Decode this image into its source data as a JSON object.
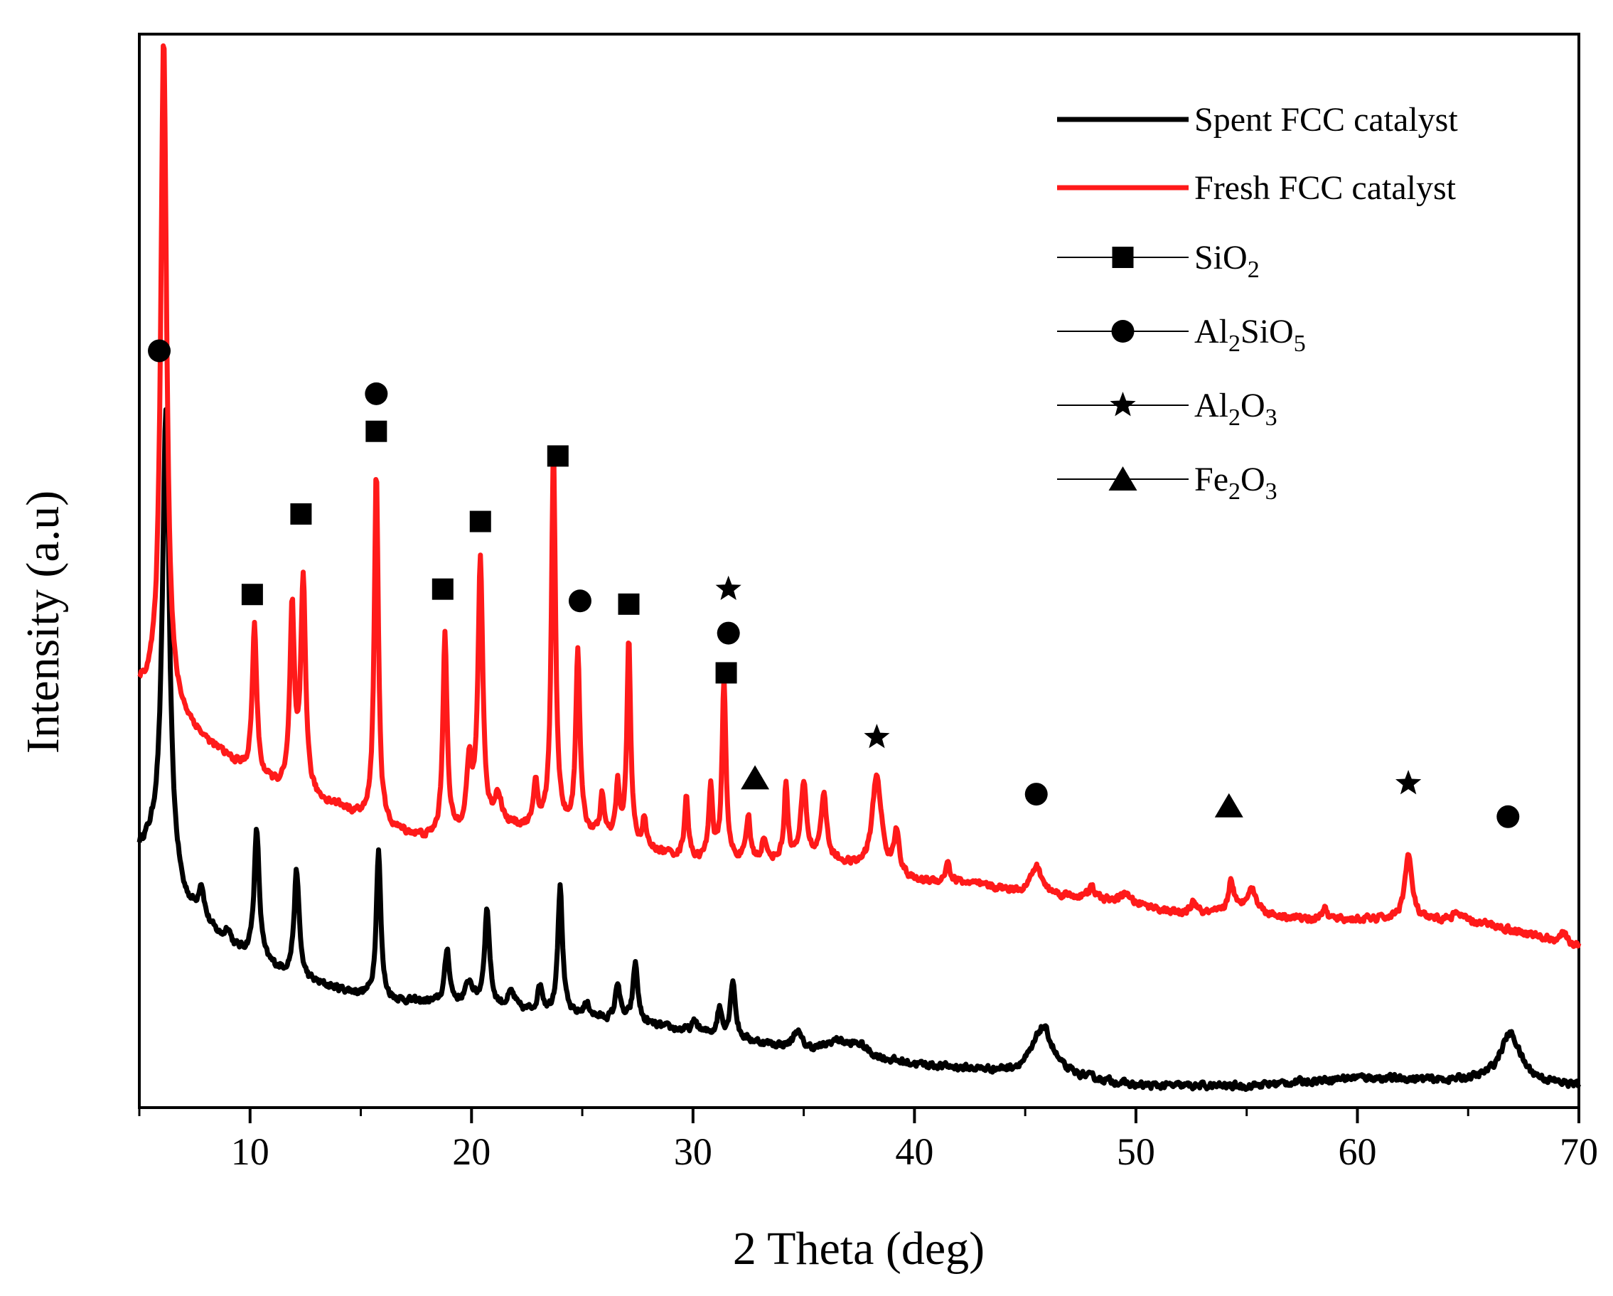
{
  "chart_data": {
    "type": "line",
    "title": "",
    "xlabel": "2 Theta (deg)",
    "ylabel": "Intensity (a.u)",
    "xlim": [
      5,
      70
    ],
    "ylim": [
      0,
      100
    ],
    "x_ticks": [
      10,
      20,
      30,
      40,
      50,
      60,
      70
    ],
    "x_tick_labels": [
      "10",
      "20",
      "30",
      "40",
      "50",
      "60",
      "70"
    ],
    "y_tick_labels_shown": false,
    "grid": false,
    "legend_position": "top-right",
    "colors": {
      "spent": "#000000",
      "fresh": "#ff1a1a",
      "axis": "#000000"
    },
    "series": [
      {
        "name": "Spent FCC catalyst",
        "color": "#000000",
        "baseline": [
          [
            5,
            24
          ],
          [
            6,
            25
          ],
          [
            7,
            19
          ],
          [
            9,
            15
          ],
          [
            12,
            12
          ],
          [
            16,
            10
          ],
          [
            20,
            9.5
          ],
          [
            24,
            8.5
          ],
          [
            27,
            8
          ],
          [
            30,
            7
          ],
          [
            33,
            6
          ],
          [
            36,
            5
          ],
          [
            40,
            4
          ],
          [
            44,
            3.3
          ],
          [
            48,
            2.6
          ],
          [
            50,
            2
          ],
          [
            55,
            2
          ],
          [
            60,
            2.8
          ],
          [
            64,
            2.5
          ],
          [
            66,
            2.5
          ],
          [
            68,
            2.3
          ],
          [
            70,
            2
          ]
        ],
        "peaks": [
          [
            6.2,
            41,
            0.18
          ],
          [
            7.8,
            3,
            0.15
          ],
          [
            9,
            1.5,
            0.15
          ],
          [
            10.3,
            12,
            0.14
          ],
          [
            12.1,
            10,
            0.14
          ],
          [
            15.8,
            14,
            0.12
          ],
          [
            18.9,
            5,
            0.13
          ],
          [
            19.9,
            2,
            0.2
          ],
          [
            20.7,
            9,
            0.14
          ],
          [
            21.8,
            1.5,
            0.2
          ],
          [
            23.1,
            2.5,
            0.14
          ],
          [
            24,
            12,
            0.13
          ],
          [
            25.2,
            1.2,
            0.2
          ],
          [
            26.6,
            3.5,
            0.12
          ],
          [
            27.4,
            5.5,
            0.13
          ],
          [
            30.1,
            1,
            0.15
          ],
          [
            31.2,
            2.5,
            0.13
          ],
          [
            31.8,
            5.5,
            0.13
          ],
          [
            34.7,
            1.6,
            0.2
          ],
          [
            36.5,
            1.2,
            0.6
          ],
          [
            37.5,
            1,
            0.5
          ],
          [
            45.8,
            4.5,
            0.55
          ],
          [
            66.9,
            4.5,
            0.55
          ]
        ]
      },
      {
        "name": "Fresh FCC catalyst",
        "color": "#ff1a1a",
        "baseline": [
          [
            5,
            39
          ],
          [
            5.6,
            38.5
          ],
          [
            6.5,
            37
          ],
          [
            8,
            34
          ],
          [
            10,
            31
          ],
          [
            12,
            29
          ],
          [
            14,
            28
          ],
          [
            16,
            26
          ],
          [
            18,
            25
          ],
          [
            22,
            26
          ],
          [
            24,
            26
          ],
          [
            26,
            25
          ],
          [
            28,
            24
          ],
          [
            30,
            23
          ],
          [
            32,
            23
          ],
          [
            34,
            23
          ],
          [
            36,
            23
          ],
          [
            38,
            22
          ],
          [
            40,
            21
          ],
          [
            42,
            21
          ],
          [
            45,
            20
          ],
          [
            48,
            19.5
          ],
          [
            50,
            19
          ],
          [
            52,
            18
          ],
          [
            55,
            18
          ],
          [
            58,
            17.5
          ],
          [
            62,
            17.5
          ],
          [
            66,
            17
          ],
          [
            68,
            16
          ],
          [
            70,
            15
          ]
        ],
        "peaks": [
          [
            6.1,
            62,
            0.16
          ],
          [
            10.2,
            14,
            0.12
          ],
          [
            11.9,
            17,
            0.12
          ],
          [
            12.4,
            20,
            0.13
          ],
          [
            15.7,
            33,
            0.11
          ],
          [
            18.8,
            19,
            0.11
          ],
          [
            19.9,
            6,
            0.15
          ],
          [
            20.4,
            25,
            0.13
          ],
          [
            21.2,
            3,
            0.2
          ],
          [
            22.9,
            4,
            0.1
          ],
          [
            23.7,
            35,
            0.11
          ],
          [
            24.8,
            17,
            0.11
          ],
          [
            25.9,
            4,
            0.1
          ],
          [
            26.6,
            5,
            0.1
          ],
          [
            27.1,
            19,
            0.1
          ],
          [
            27.8,
            2.5,
            0.1
          ],
          [
            29.7,
            6,
            0.1
          ],
          [
            30.8,
            7,
            0.1
          ],
          [
            31.4,
            17,
            0.1
          ],
          [
            32.5,
            4,
            0.1
          ],
          [
            33.2,
            2,
            0.1
          ],
          [
            34.2,
            7,
            0.1
          ],
          [
            35,
            7,
            0.15
          ],
          [
            35.9,
            6,
            0.15
          ],
          [
            38.3,
            9,
            0.25
          ],
          [
            39.2,
            4,
            0.15
          ],
          [
            41.5,
            2,
            0.1
          ],
          [
            45.5,
            2.5,
            0.3
          ],
          [
            48,
            1,
            0.15
          ],
          [
            49.5,
            1,
            0.15
          ],
          [
            52.6,
            1.2,
            0.15
          ],
          [
            54.3,
            3,
            0.15
          ],
          [
            55.2,
            2.4,
            0.3
          ],
          [
            58.5,
            1,
            0.15
          ],
          [
            62.3,
            6,
            0.2
          ],
          [
            64.5,
            0.8,
            0.4
          ],
          [
            69.3,
            0.8,
            0.2
          ]
        ]
      }
    ],
    "legend": {
      "series_entries": [
        {
          "label": "Spent FCC catalyst",
          "color": "#000000"
        },
        {
          "label": " Fresh FCC catalyst",
          "color": "#ff1a1a"
        }
      ],
      "marker_entries": [
        {
          "shape": "square",
          "label": "SiO",
          "sub": "2",
          "label2": "",
          "sub2": ""
        },
        {
          "shape": "circle",
          "label": "Al",
          "sub": "2",
          "label2": "SiO",
          "sub2": "5"
        },
        {
          "shape": "star",
          "label": "Al",
          "sub": "2",
          "label2": "O",
          "sub2": "3"
        },
        {
          "shape": "triangle",
          "label": "Fe",
          "sub": "2",
          "label2": "O",
          "sub2": "3"
        }
      ]
    },
    "phase_markers": [
      {
        "shape": "circle",
        "x": 5.9,
        "y": 70.5
      },
      {
        "shape": "circle",
        "x": 15.7,
        "y": 66.5
      },
      {
        "shape": "square",
        "x": 15.7,
        "y": 63
      },
      {
        "shape": "square",
        "x": 10.1,
        "y": 47.8
      },
      {
        "shape": "square",
        "x": 12.3,
        "y": 55.3
      },
      {
        "shape": "square",
        "x": 18.7,
        "y": 48.3
      },
      {
        "shape": "square",
        "x": 20.4,
        "y": 54.6
      },
      {
        "shape": "square",
        "x": 23.9,
        "y": 60.7
      },
      {
        "shape": "circle",
        "x": 24.9,
        "y": 47.2
      },
      {
        "shape": "square",
        "x": 27.1,
        "y": 46.9
      },
      {
        "shape": "star",
        "x": 31.6,
        "y": 48.3
      },
      {
        "shape": "circle",
        "x": 31.6,
        "y": 44.2
      },
      {
        "shape": "square",
        "x": 31.5,
        "y": 40.5
      },
      {
        "shape": "triangle",
        "x": 32.8,
        "y": 30.7
      },
      {
        "shape": "star",
        "x": 38.3,
        "y": 34.5
      },
      {
        "shape": "circle",
        "x": 45.5,
        "y": 29.2
      },
      {
        "shape": "triangle",
        "x": 54.2,
        "y": 28.1
      },
      {
        "shape": "star",
        "x": 62.3,
        "y": 30.2
      },
      {
        "shape": "circle",
        "x": 66.8,
        "y": 27.1
      }
    ]
  }
}
